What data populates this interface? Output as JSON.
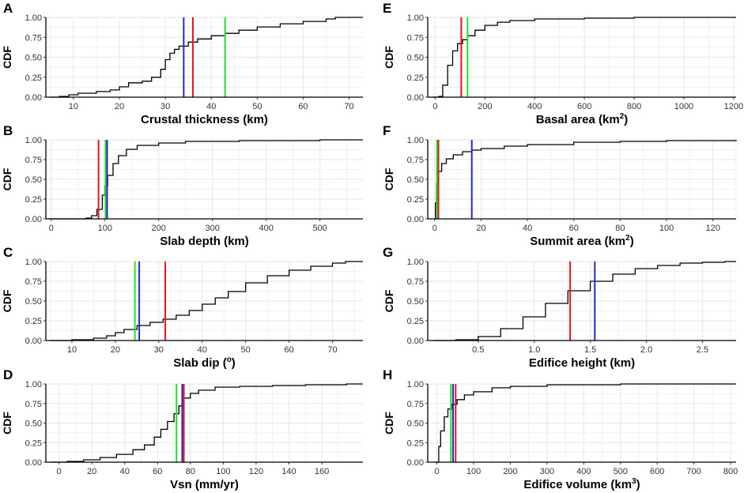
{
  "colors": {
    "red": "#e8141c",
    "green": "#22e022",
    "blue": "#2626cc",
    "curve": "#000000",
    "grid": "#ebebeb"
  },
  "chart_data": [
    {
      "type": "line",
      "letter": "A",
      "ylabel": "CDF",
      "xlabel": "Crustal thickness (km)",
      "xlabel_sup": "",
      "xlabel_after": "",
      "xlim": [
        4,
        73
      ],
      "ylim": [
        0,
        1
      ],
      "xticks": [
        10,
        20,
        30,
        40,
        50,
        60,
        70
      ],
      "xtick_labels": [
        "10",
        "20",
        "30",
        "40",
        "50",
        "60",
        "70"
      ],
      "yticks": [
        0,
        0.25,
        0.5,
        0.75,
        1
      ],
      "ytick_labels": [
        "0.00",
        "0.25",
        "0.50",
        "0.75",
        "1.00"
      ],
      "curve": [
        [
          5,
          0
        ],
        [
          7,
          0.01
        ],
        [
          9,
          0.03
        ],
        [
          11,
          0.05
        ],
        [
          15,
          0.07
        ],
        [
          18,
          0.09
        ],
        [
          20,
          0.13
        ],
        [
          22,
          0.18
        ],
        [
          25,
          0.2
        ],
        [
          27,
          0.25
        ],
        [
          29,
          0.35
        ],
        [
          30,
          0.47
        ],
        [
          31,
          0.55
        ],
        [
          32,
          0.6
        ],
        [
          33,
          0.64
        ],
        [
          35,
          0.69
        ],
        [
          37,
          0.73
        ],
        [
          40,
          0.77
        ],
        [
          43,
          0.8
        ],
        [
          46,
          0.84
        ],
        [
          50,
          0.88
        ],
        [
          55,
          0.92
        ],
        [
          60,
          0.95
        ],
        [
          65,
          0.98
        ],
        [
          67,
          1
        ],
        [
          73,
          1
        ]
      ],
      "vlines": [
        {
          "x": 34,
          "color": "blue"
        },
        {
          "x": 36,
          "color": "red"
        },
        {
          "x": 43,
          "color": "green"
        }
      ]
    },
    {
      "type": "line",
      "letter": "E",
      "ylabel": "CDF",
      "xlabel": "Basal area (km",
      "xlabel_sup": "2",
      "xlabel_after": ")",
      "xlim": [
        -30,
        1210
      ],
      "ylim": [
        0,
        1
      ],
      "xticks": [
        0,
        200,
        400,
        600,
        800,
        1000,
        1200
      ],
      "xtick_labels": [
        "0",
        "200",
        "400",
        "600",
        "800",
        "1000",
        "1200"
      ],
      "yticks": [
        0,
        0.25,
        0.5,
        0.75,
        1
      ],
      "ytick_labels": [
        "0.00",
        "0.25",
        "0.50",
        "0.75",
        "1.00"
      ],
      "curve": [
        [
          -10,
          0
        ],
        [
          15,
          0.01
        ],
        [
          30,
          0.15
        ],
        [
          50,
          0.4
        ],
        [
          70,
          0.58
        ],
        [
          90,
          0.67
        ],
        [
          110,
          0.72
        ],
        [
          130,
          0.77
        ],
        [
          160,
          0.84
        ],
        [
          200,
          0.9
        ],
        [
          250,
          0.94
        ],
        [
          300,
          0.96
        ],
        [
          400,
          0.98
        ],
        [
          600,
          0.99
        ],
        [
          800,
          1
        ],
        [
          1210,
          1
        ]
      ],
      "vlines": [
        {
          "x": 105,
          "color": "red"
        },
        {
          "x": 130,
          "color": "green"
        }
      ]
    },
    {
      "type": "line",
      "letter": "B",
      "ylabel": "CDF",
      "xlabel": "Slab depth (km)",
      "xlabel_sup": "",
      "xlabel_after": "",
      "xlim": [
        -10,
        580
      ],
      "ylim": [
        0,
        1
      ],
      "xticks": [
        0,
        100,
        200,
        300,
        400,
        500
      ],
      "xtick_labels": [
        "0",
        "100",
        "200",
        "300",
        "400",
        "500"
      ],
      "yticks": [
        0,
        0.25,
        0.5,
        0.75,
        1
      ],
      "ytick_labels": [
        "0.00",
        "0.25",
        "0.50",
        "0.75",
        "1.00"
      ],
      "curve": [
        [
          -5,
          0
        ],
        [
          55,
          0
        ],
        [
          65,
          0.01
        ],
        [
          75,
          0.04
        ],
        [
          85,
          0.12
        ],
        [
          95,
          0.3
        ],
        [
          100,
          0.42
        ],
        [
          105,
          0.55
        ],
        [
          115,
          0.7
        ],
        [
          125,
          0.8
        ],
        [
          140,
          0.88
        ],
        [
          160,
          0.93
        ],
        [
          200,
          0.96
        ],
        [
          250,
          0.98
        ],
        [
          350,
          0.99
        ],
        [
          500,
          1
        ],
        [
          580,
          1
        ]
      ],
      "vlines": [
        {
          "x": 88,
          "color": "red"
        },
        {
          "x": 101,
          "color": "green"
        },
        {
          "x": 104,
          "color": "blue"
        }
      ]
    },
    {
      "type": "line",
      "letter": "F",
      "ylabel": "CDF",
      "xlabel": "Summit area (km",
      "xlabel_sup": "2",
      "xlabel_after": ")",
      "xlim": [
        -3,
        130
      ],
      "ylim": [
        0,
        1
      ],
      "xticks": [
        0,
        20,
        40,
        60,
        80,
        100,
        120
      ],
      "xtick_labels": [
        "0",
        "20",
        "40",
        "60",
        "80",
        "100",
        "120"
      ],
      "yticks": [
        0,
        0.25,
        0.5,
        0.75,
        1
      ],
      "ytick_labels": [
        "0.00",
        "0.25",
        "0.50",
        "0.75",
        "1.00"
      ],
      "curve": [
        [
          0,
          0
        ],
        [
          0.3,
          0.2
        ],
        [
          0.8,
          0.45
        ],
        [
          1.5,
          0.6
        ],
        [
          3,
          0.7
        ],
        [
          5,
          0.76
        ],
        [
          8,
          0.81
        ],
        [
          12,
          0.85
        ],
        [
          16,
          0.87
        ],
        [
          20,
          0.89
        ],
        [
          30,
          0.92
        ],
        [
          40,
          0.94
        ],
        [
          60,
          0.97
        ],
        [
          80,
          0.98
        ],
        [
          100,
          0.99
        ],
        [
          130,
          1
        ]
      ],
      "vlines": [
        {
          "x": 1,
          "color": "green"
        },
        {
          "x": 1.6,
          "color": "red"
        },
        {
          "x": 16,
          "color": "blue"
        }
      ]
    },
    {
      "type": "line",
      "letter": "C",
      "ylabel": "CDF",
      "xlabel": "Slab dip (",
      "xlabel_sup": "o",
      "xlabel_after": ")",
      "xlim": [
        4,
        77
      ],
      "ylim": [
        0,
        1
      ],
      "xticks": [
        10,
        20,
        30,
        40,
        50,
        60,
        70
      ],
      "xtick_labels": [
        "10",
        "20",
        "30",
        "40",
        "50",
        "60",
        "70"
      ],
      "yticks": [
        0,
        0.25,
        0.5,
        0.75,
        1
      ],
      "ytick_labels": [
        "0.00",
        "0.25",
        "0.50",
        "0.75",
        "1.00"
      ],
      "curve": [
        [
          5,
          0
        ],
        [
          10,
          0.01
        ],
        [
          15,
          0.03
        ],
        [
          18,
          0.06
        ],
        [
          20,
          0.1
        ],
        [
          22,
          0.14
        ],
        [
          25,
          0.19
        ],
        [
          28,
          0.23
        ],
        [
          31,
          0.27
        ],
        [
          34,
          0.32
        ],
        [
          37,
          0.38
        ],
        [
          40,
          0.46
        ],
        [
          43,
          0.54
        ],
        [
          46,
          0.62
        ],
        [
          50,
          0.73
        ],
        [
          55,
          0.82
        ],
        [
          60,
          0.89
        ],
        [
          65,
          0.94
        ],
        [
          70,
          0.98
        ],
        [
          73,
          1
        ],
        [
          77,
          1
        ]
      ],
      "vlines": [
        {
          "x": 24.5,
          "color": "green"
        },
        {
          "x": 25.5,
          "color": "blue"
        },
        {
          "x": 31.5,
          "color": "red"
        }
      ]
    },
    {
      "type": "line",
      "letter": "G",
      "ylabel": "CDF",
      "xlabel": "Edifice height (km)",
      "xlabel_sup": "",
      "xlabel_after": "",
      "xlim": [
        0.05,
        2.8
      ],
      "ylim": [
        0,
        1
      ],
      "xticks": [
        0.5,
        1,
        1.5,
        2,
        2.5
      ],
      "xtick_labels": [
        "0.5",
        "1.0",
        "1.5",
        "2.0",
        "2.5"
      ],
      "yticks": [
        0,
        0.25,
        0.5,
        0.75,
        1
      ],
      "ytick_labels": [
        "0.00",
        "0.25",
        "0.50",
        "0.75",
        "1.00"
      ],
      "curve": [
        [
          0.1,
          0
        ],
        [
          0.3,
          0.01
        ],
        [
          0.5,
          0.05
        ],
        [
          0.7,
          0.15
        ],
        [
          0.9,
          0.3
        ],
        [
          1.1,
          0.47
        ],
        [
          1.3,
          0.63
        ],
        [
          1.5,
          0.75
        ],
        [
          1.7,
          0.84
        ],
        [
          1.9,
          0.91
        ],
        [
          2.1,
          0.95
        ],
        [
          2.3,
          0.98
        ],
        [
          2.5,
          0.99
        ],
        [
          2.7,
          1
        ],
        [
          2.8,
          1
        ]
      ],
      "vlines": [
        {
          "x": 1.32,
          "color": "red"
        },
        {
          "x": 1.54,
          "color": "blue"
        }
      ]
    },
    {
      "type": "line",
      "letter": "D",
      "ylabel": "CDF",
      "xlabel": "Vsn (mm/yr)",
      "xlabel_sup": "",
      "xlabel_after": "",
      "xlim": [
        -8,
        185
      ],
      "ylim": [
        0,
        1
      ],
      "xticks": [
        0,
        20,
        40,
        60,
        80,
        100,
        120,
        140,
        160
      ],
      "xtick_labels": [
        "0",
        "20",
        "40",
        "60",
        "80",
        "100",
        "120",
        "140",
        "160"
      ],
      "yticks": [
        0,
        0.25,
        0.5,
        0.75,
        1
      ],
      "ytick_labels": [
        "0.00",
        "0.25",
        "0.50",
        "0.75",
        "1.00"
      ],
      "curve": [
        [
          -5,
          0
        ],
        [
          5,
          0.01
        ],
        [
          15,
          0.03
        ],
        [
          25,
          0.06
        ],
        [
          35,
          0.1
        ],
        [
          45,
          0.16
        ],
        [
          52,
          0.22
        ],
        [
          58,
          0.32
        ],
        [
          62,
          0.42
        ],
        [
          66,
          0.52
        ],
        [
          70,
          0.62
        ],
        [
          73,
          0.72
        ],
        [
          76,
          0.82
        ],
        [
          80,
          0.88
        ],
        [
          85,
          0.92
        ],
        [
          95,
          0.96
        ],
        [
          110,
          0.97
        ],
        [
          130,
          0.98
        ],
        [
          150,
          0.99
        ],
        [
          175,
          1
        ],
        [
          185,
          1
        ]
      ],
      "vlines": [
        {
          "x": 71.5,
          "color": "green"
        },
        {
          "x": 75,
          "color": "blue"
        },
        {
          "x": 76,
          "color": "red"
        }
      ]
    },
    {
      "type": "line",
      "letter": "H",
      "ylabel": "CDF",
      "xlabel": "Edifice volume (km",
      "xlabel_sup": "3",
      "xlabel_after": ")",
      "xlim": [
        -25,
        815
      ],
      "ylim": [
        0,
        1
      ],
      "xticks": [
        0,
        100,
        200,
        300,
        400,
        500,
        600,
        700,
        800
      ],
      "xtick_labels": [
        "0",
        "100",
        "200",
        "300",
        "400",
        "500",
        "600",
        "700",
        "800"
      ],
      "yticks": [
        0,
        0.25,
        0.5,
        0.75,
        1
      ],
      "ytick_labels": [
        "0.00",
        "0.25",
        "0.50",
        "0.75",
        "1.00"
      ],
      "curve": [
        [
          -5,
          0
        ],
        [
          2,
          0
        ],
        [
          5,
          0.2
        ],
        [
          10,
          0.4
        ],
        [
          20,
          0.58
        ],
        [
          30,
          0.68
        ],
        [
          40,
          0.74
        ],
        [
          55,
          0.8
        ],
        [
          75,
          0.86
        ],
        [
          100,
          0.9
        ],
        [
          150,
          0.95
        ],
        [
          200,
          0.97
        ],
        [
          300,
          0.99
        ],
        [
          500,
          1
        ],
        [
          815,
          1
        ]
      ],
      "vlines": [
        {
          "x": 38,
          "color": "green"
        },
        {
          "x": 44,
          "color": "blue"
        },
        {
          "x": 51,
          "color": "red"
        }
      ]
    }
  ]
}
